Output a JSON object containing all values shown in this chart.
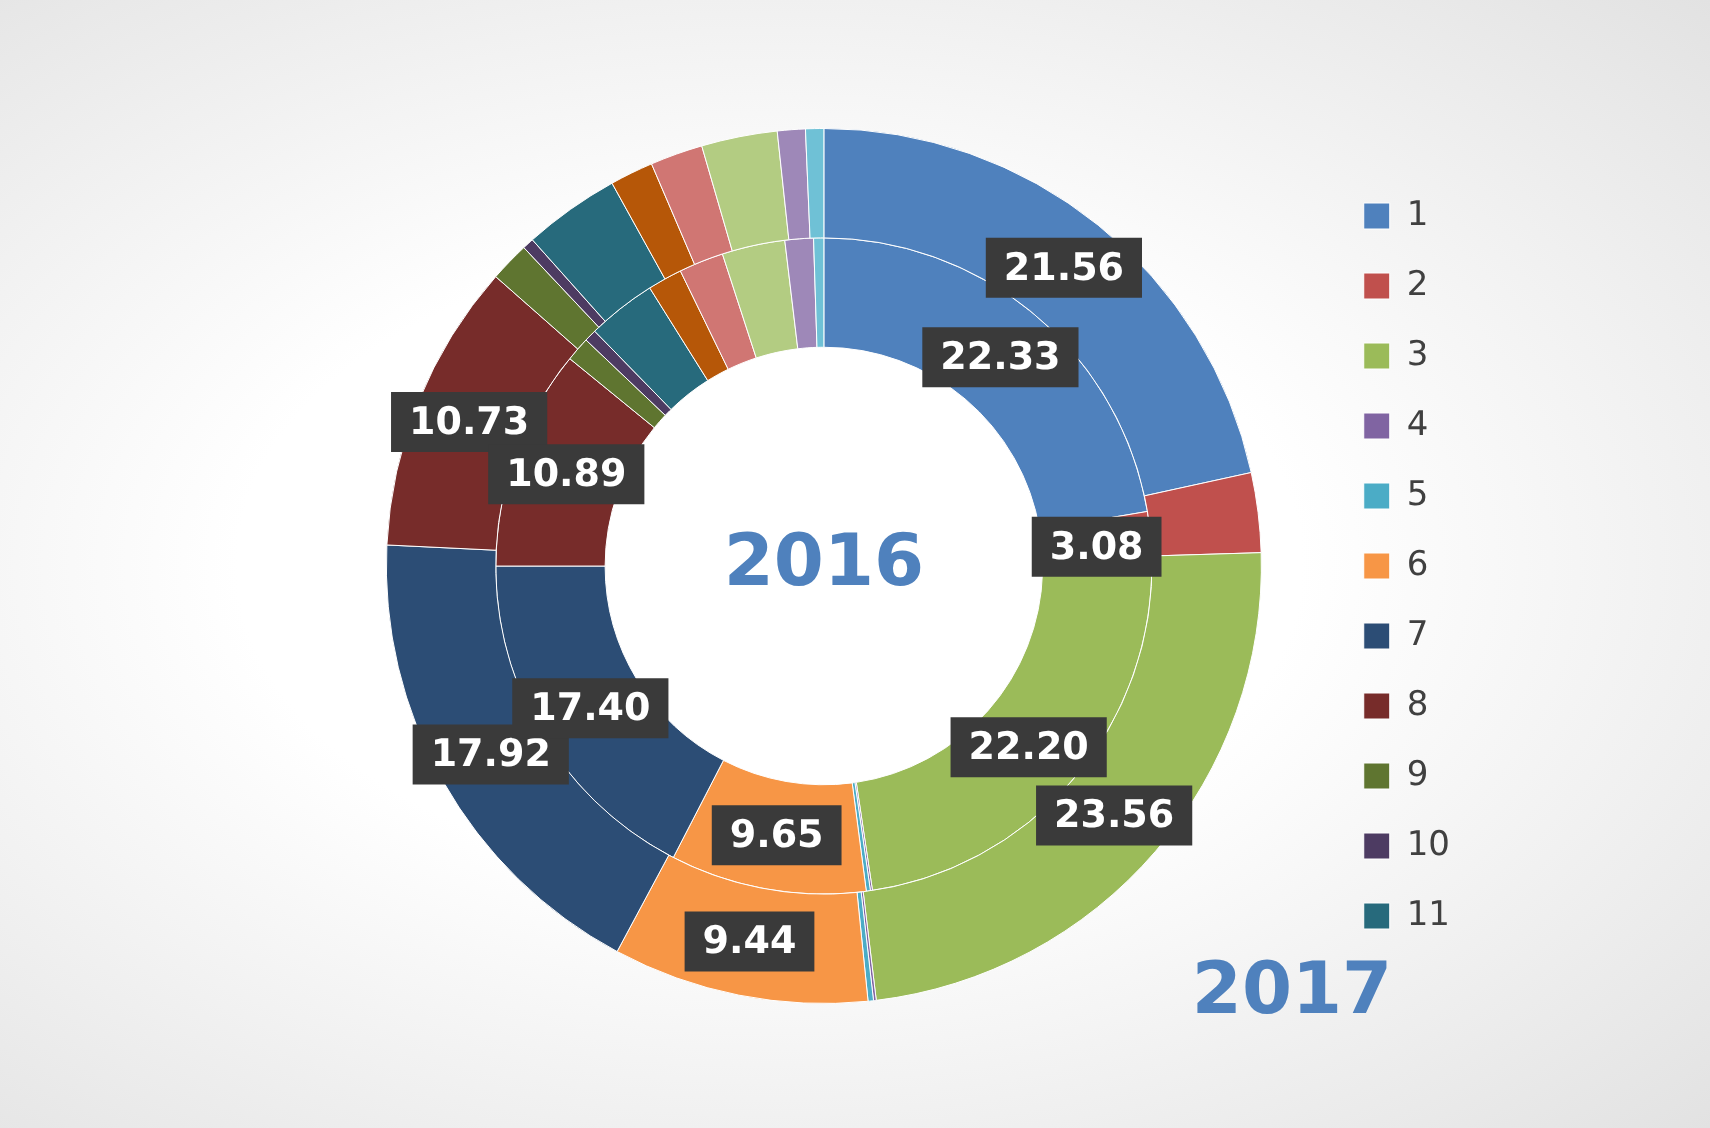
{
  "chart_data": {
    "type": "donut",
    "categories": [
      "1",
      "2",
      "3",
      "4",
      "5",
      "6",
      "7",
      "8",
      "9",
      "10",
      "11",
      null,
      null,
      null,
      null,
      null
    ],
    "colors": [
      "#4f81bd",
      "#c0504d",
      "#9bbb59",
      "#8064a2",
      "#4bacc6",
      "#f79646",
      "#2c4d75",
      "#772c2a",
      "#5f7530",
      "#4d3b62",
      "#276a7c",
      "#b65708",
      "#d07673",
      "#b3cc82",
      "#9e88b8",
      "#6fc1d6"
    ],
    "series": [
      {
        "name": "2016",
        "values": [
          22.33,
          3.08,
          22.2,
          0.1,
          0.2,
          9.65,
          17.4,
          10.89,
          1.2,
          0.6,
          3.4,
          1.7,
          2.2,
          3.1,
          1.4,
          0.5
        ],
        "value_labels": [
          "22.33",
          "3.08",
          "22.20",
          null,
          null,
          "9.65",
          "17.40",
          "10.89",
          null,
          null,
          null,
          null,
          null,
          null,
          null,
          null
        ]
      },
      {
        "name": "2017",
        "values": [
          21.56,
          2.94,
          23.56,
          0.1,
          0.2,
          9.44,
          17.92,
          10.73,
          1.47,
          0.42,
          3.56,
          1.6,
          1.94,
          2.8,
          1.03,
          0.67
        ],
        "value_labels": [
          "21.56",
          null,
          "23.56",
          null,
          null,
          "9.44",
          "17.92",
          "10.73",
          null,
          null,
          null,
          null,
          null,
          null,
          null,
          null
        ]
      }
    ],
    "legend": "right"
  }
}
